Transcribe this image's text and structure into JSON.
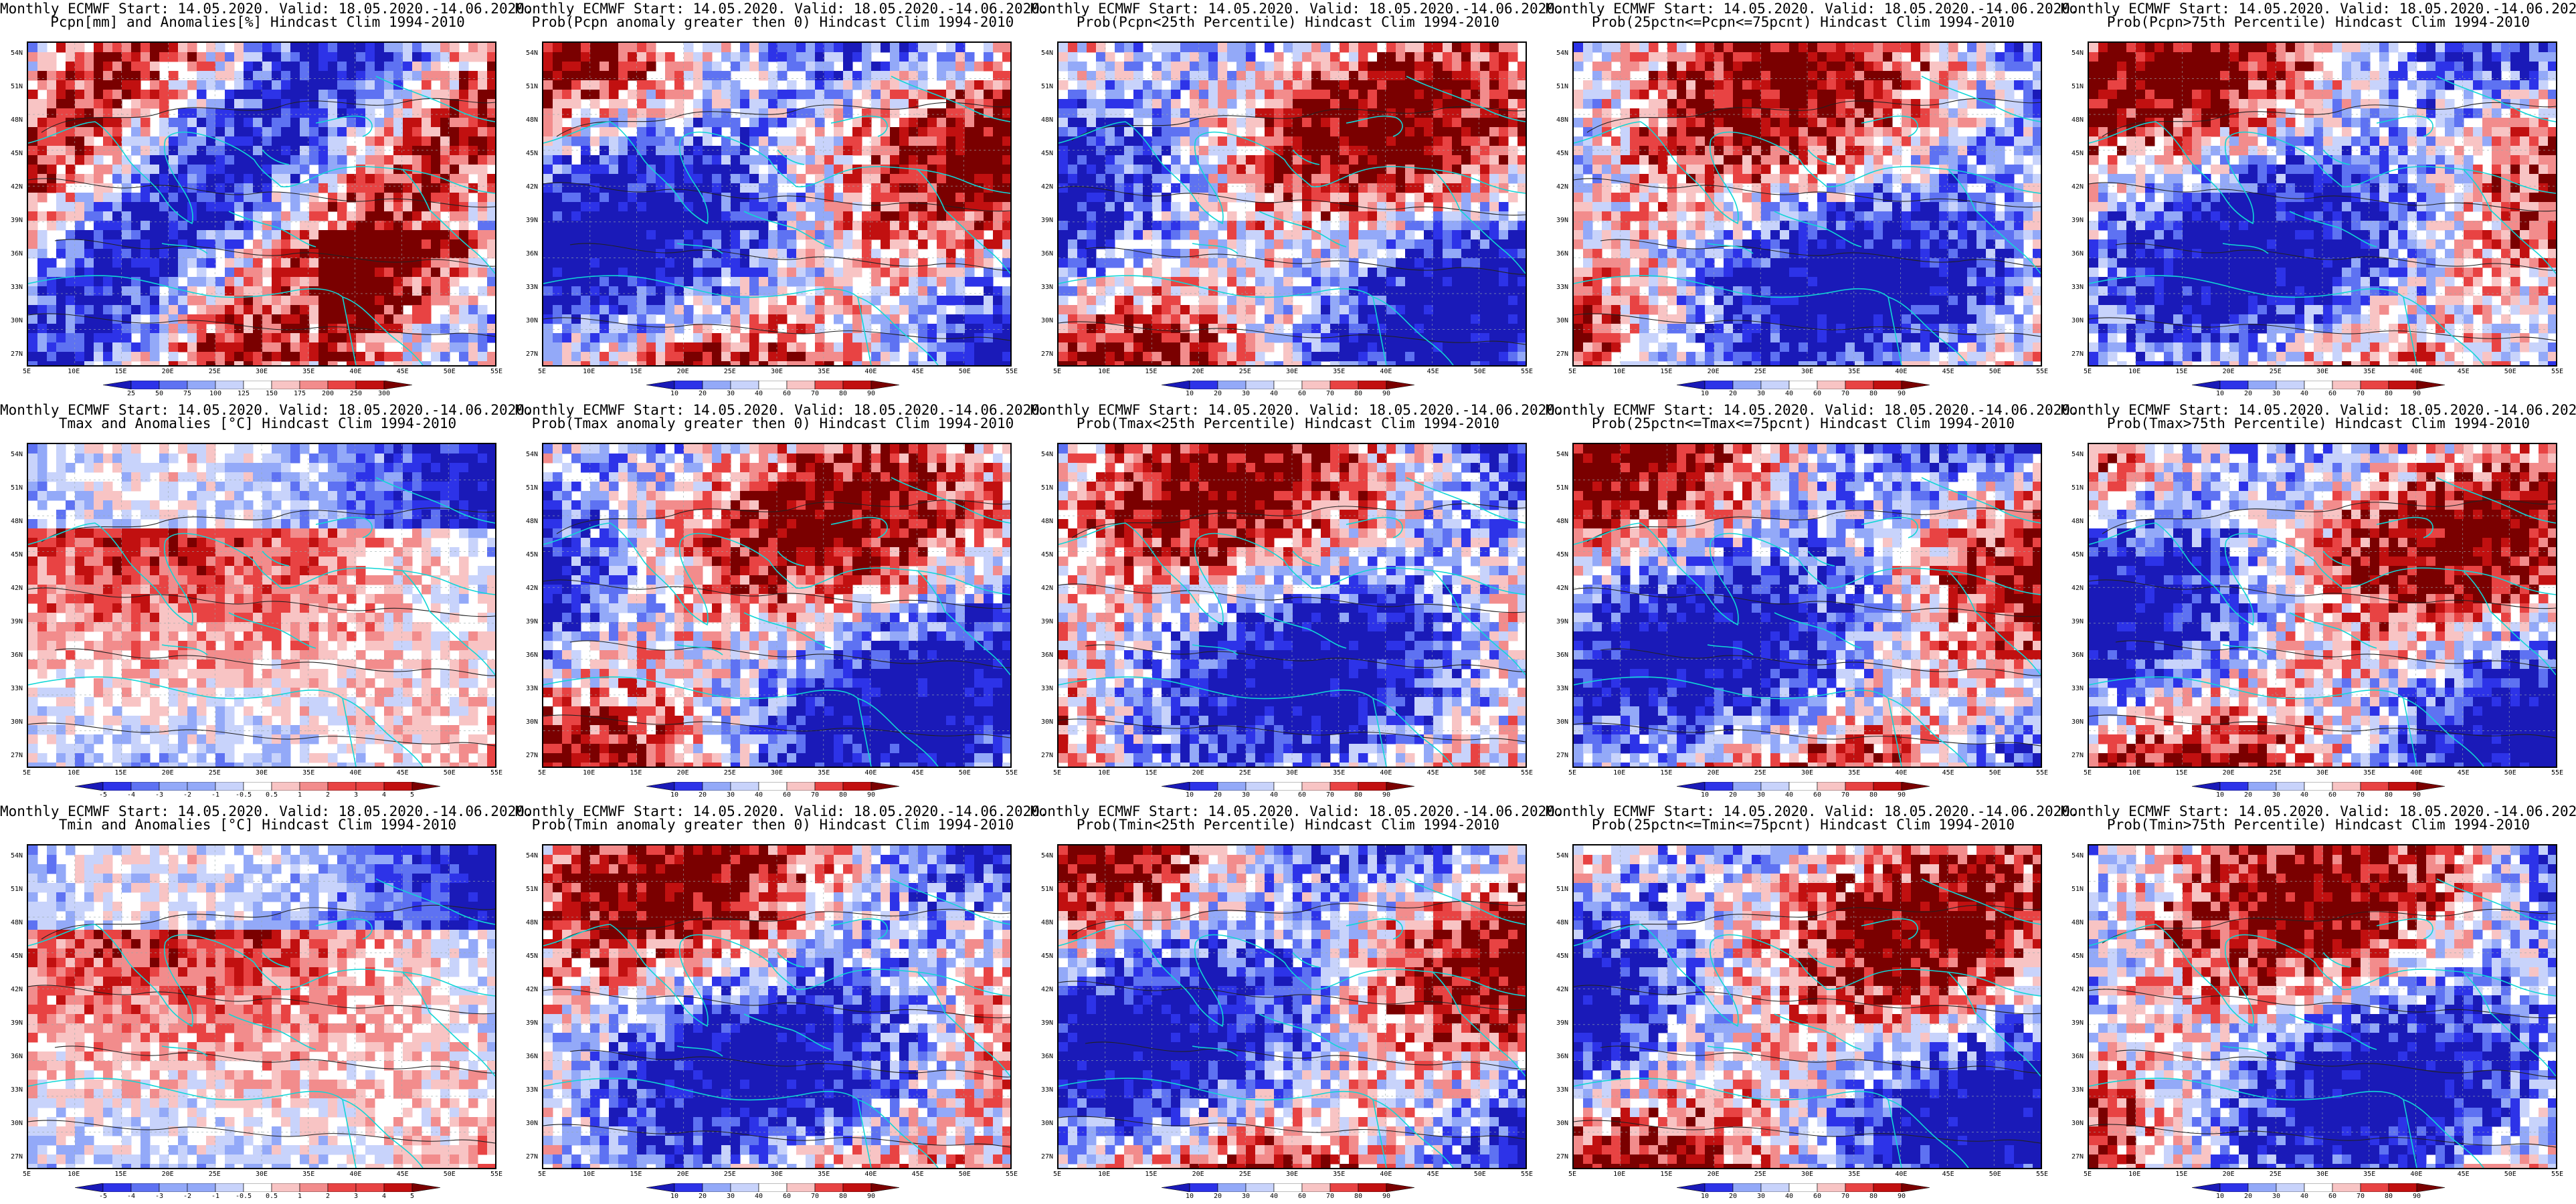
{
  "common": {
    "title_line1": "Monthly ECMWF Start: 14.05.2020. Valid: 18.05.2020.-14.06.2020.",
    "lat_labels": [
      "54N",
      "51N",
      "48N",
      "45N",
      "42N",
      "39N",
      "36N",
      "33N",
      "30N",
      "27N"
    ],
    "lon_labels": [
      "5E",
      "10E",
      "15E",
      "20E",
      "25E",
      "30E",
      "35E",
      "40E",
      "45E",
      "50E",
      "55E"
    ],
    "prob_scale": [
      "10",
      "20",
      "30",
      "40",
      "60",
      "70",
      "80",
      "90"
    ],
    "colors": {
      "coast": "#11d6d6",
      "contour": "#222222",
      "scale_blue_to_red": [
        "#1a1ab8",
        "#2d33e8",
        "#5e72f2",
        "#93a9f8",
        "#c8d3fb",
        "#ffffff",
        "#f8c4c4",
        "#f28c8c",
        "#e84343",
        "#c11010",
        "#7a0000"
      ]
    }
  },
  "panels": [
    {
      "title": "Pcpn[mm] and Anomalies[%] Hindcast Clim 1994-2010",
      "scale": [
        "25",
        "50",
        "75",
        "100",
        "125",
        "150",
        "175",
        "200",
        "250",
        "300"
      ],
      "field": "precip-anomaly"
    },
    {
      "title": "Prob(Pcpn anomaly greater then 0) Hindcast Clim 1994-2010",
      "scale": [
        "10",
        "20",
        "30",
        "40",
        "60",
        "70",
        "80",
        "90"
      ],
      "field": "prob"
    },
    {
      "title": "Prob(Pcpn<25th Percentile) Hindcast Clim 1994-2010",
      "scale": [
        "10",
        "20",
        "30",
        "40",
        "60",
        "70",
        "80",
        "90"
      ],
      "field": "prob"
    },
    {
      "title": "Prob(25pctn<=Pcpn<=75pcnt) Hindcast Clim 1994-2010",
      "scale": [
        "10",
        "20",
        "30",
        "40",
        "60",
        "70",
        "80",
        "90"
      ],
      "field": "prob"
    },
    {
      "title": "Prob(Pcpn>75th Percentile) Hindcast Clim 1994-2010",
      "scale": [
        "10",
        "20",
        "30",
        "40",
        "60",
        "70",
        "80",
        "90"
      ],
      "field": "prob"
    },
    {
      "title": "Tmax and Anomalies [°C] Hindcast Clim 1994-2010",
      "scale": [
        "-5",
        "-4",
        "-3",
        "-2",
        "-1",
        "-0.5",
        "0.5",
        "1",
        "2",
        "3",
        "4",
        "5"
      ],
      "field": "temp-anomaly"
    },
    {
      "title": "Prob(Tmax anomaly greater then 0) Hindcast Clim 1994-2010",
      "scale": [
        "10",
        "20",
        "30",
        "40",
        "60",
        "70",
        "80",
        "90"
      ],
      "field": "prob"
    },
    {
      "title": "Prob(Tmax<25th Percentile) Hindcast Clim 1994-2010",
      "scale": [
        "10",
        "20",
        "30",
        "40",
        "60",
        "70",
        "80",
        "90"
      ],
      "field": "prob"
    },
    {
      "title": "Prob(25pctn<=Tmax<=75pcnt) Hindcast Clim 1994-2010",
      "scale": [
        "10",
        "20",
        "30",
        "40",
        "60",
        "70",
        "80",
        "90"
      ],
      "field": "prob"
    },
    {
      "title": "Prob(Tmax>75th Percentile) Hindcast Clim 1994-2010",
      "scale": [
        "10",
        "20",
        "30",
        "40",
        "60",
        "70",
        "80",
        "90"
      ],
      "field": "prob"
    },
    {
      "title": "Tmin and Anomalies [°C] Hindcast Clim 1994-2010",
      "scale": [
        "-5",
        "-4",
        "-3",
        "-2",
        "-1",
        "-0.5",
        "0.5",
        "1",
        "2",
        "3",
        "4",
        "5"
      ],
      "field": "temp-anomaly"
    },
    {
      "title": "Prob(Tmin anomaly greater then 0) Hindcast Clim 1994-2010",
      "scale": [
        "10",
        "20",
        "30",
        "40",
        "60",
        "70",
        "80",
        "90"
      ],
      "field": "prob"
    },
    {
      "title": "Prob(Tmin<25th Percentile) Hindcast Clim 1994-2010",
      "scale": [
        "10",
        "20",
        "30",
        "40",
        "60",
        "70",
        "80",
        "90"
      ],
      "field": "prob"
    },
    {
      "title": "Prob(25pctn<=Tmin<=75pcnt) Hindcast Clim 1994-2010",
      "scale": [
        "10",
        "20",
        "30",
        "40",
        "60",
        "70",
        "80",
        "90"
      ],
      "field": "prob"
    },
    {
      "title": "Prob(Tmin>75th Percentile) Hindcast Clim 1994-2010",
      "scale": [
        "10",
        "20",
        "30",
        "40",
        "60",
        "70",
        "80",
        "90"
      ],
      "field": "prob"
    }
  ]
}
